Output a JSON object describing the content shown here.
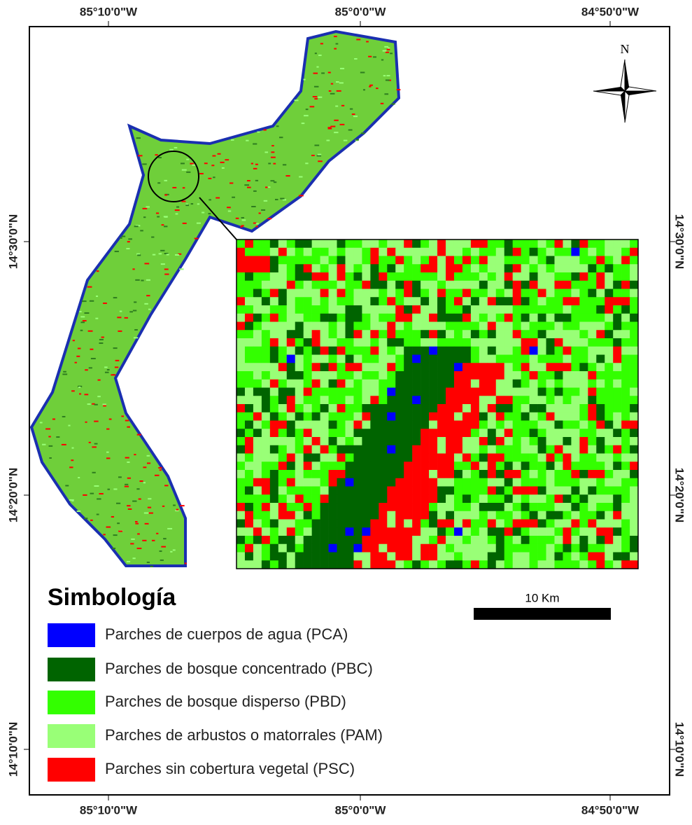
{
  "map": {
    "top_labels": [
      "85°10'0\"W",
      "85°0'0\"W",
      "84°50'0\"W"
    ],
    "bottom_labels": [
      "85°10'0\"W",
      "85°0'0\"W",
      "84°50'0\"W"
    ],
    "left_labels": [
      "14°30'0\"N",
      "14°20'0\"N",
      "14°10'0\"N"
    ],
    "right_labels": [
      "14°30'0\"N",
      "14°20'0\"N",
      "14°10'0\"N"
    ],
    "north": "N",
    "scale": "10 Km",
    "legend": {
      "title": "Simbología",
      "items": [
        {
          "label": "Parches de cuerpos de agua (PCA)",
          "color": "#0000ff"
        },
        {
          "label": "Parches de bosque concentrado (PBC)",
          "color": "#006400"
        },
        {
          "label": "Parches de bosque disperso (PBD)",
          "color": "#33ff00"
        },
        {
          "label": "Parches de arbustos o matorrales (PAM)",
          "color": "#99ff77"
        },
        {
          "label": "Parches sin cobertura vegetal (PSC)",
          "color": "#ff0000"
        }
      ]
    }
  }
}
